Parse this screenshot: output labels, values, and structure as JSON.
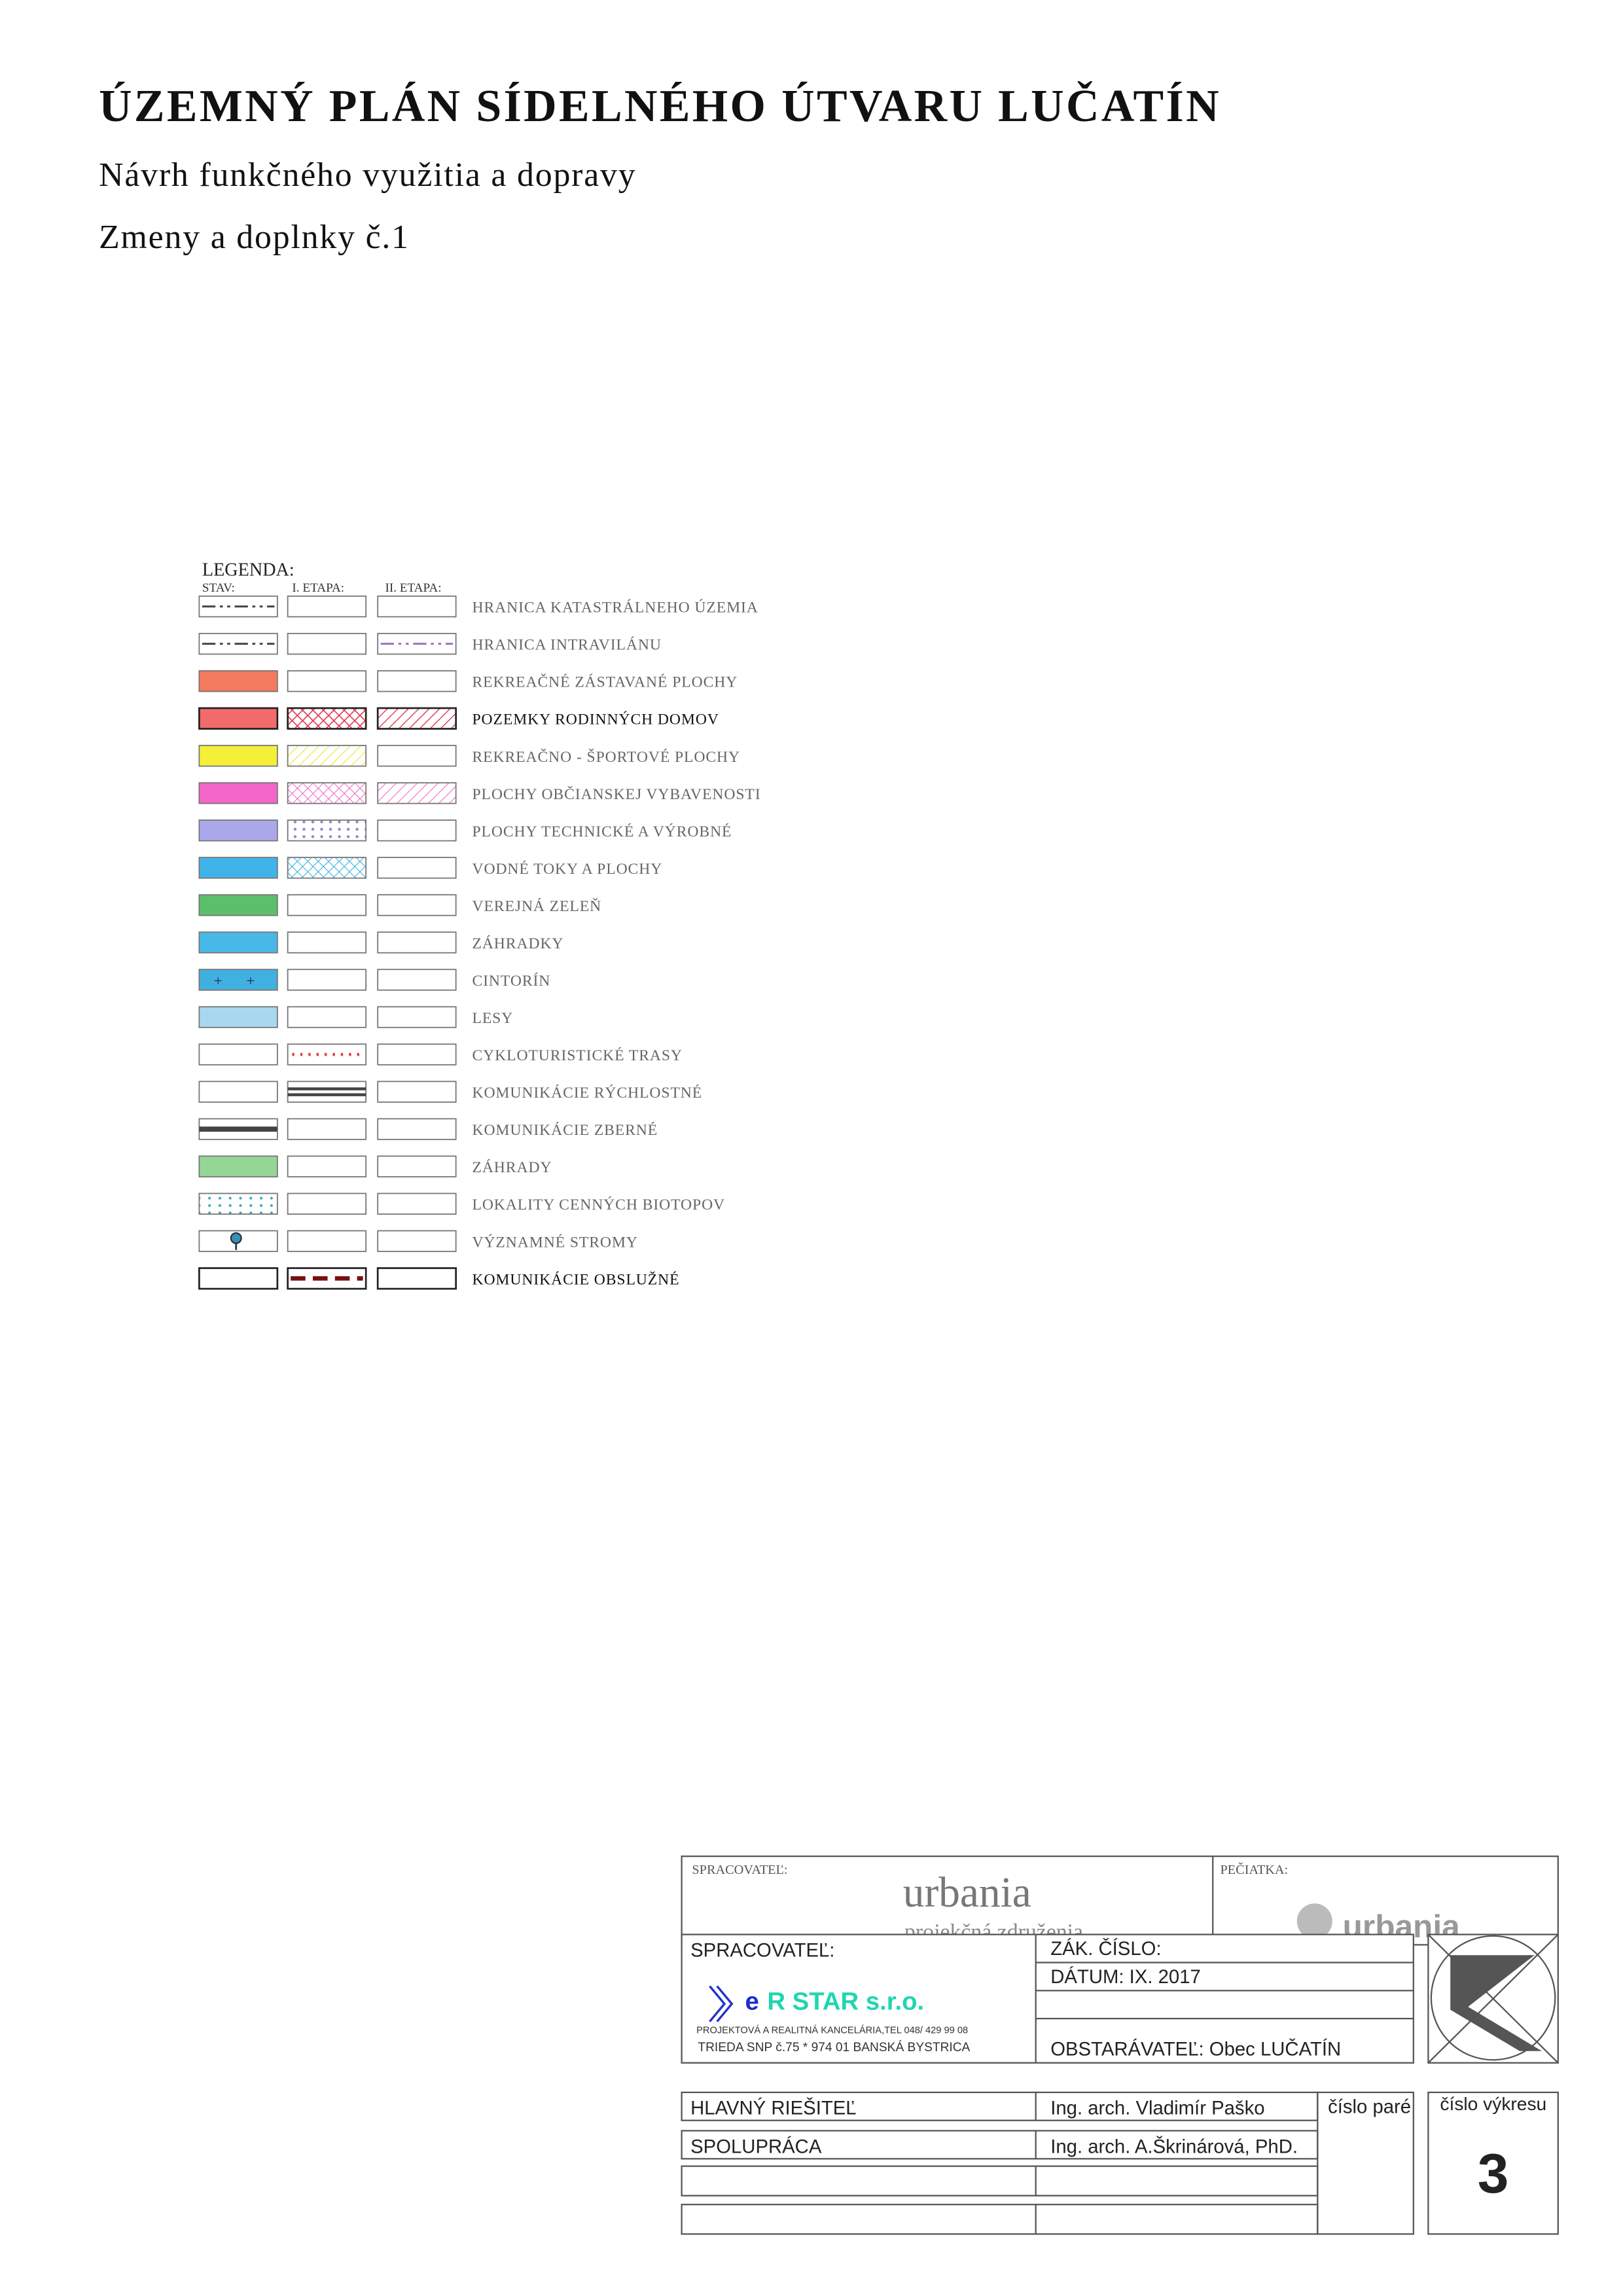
{
  "header": {
    "title": "ÚZEMNÝ PLÁN SÍDELNÉHO ÚTVARU LUČATÍN",
    "subtitle": "Návrh funkčného využitia a dopravy",
    "revision": "Zmeny a doplnky č.1"
  },
  "legend": {
    "title": "LEGENDA:",
    "columns": [
      "STAV:",
      "I. ETAPA:",
      "II. ETAPA:"
    ],
    "items": [
      "HRANICA  KATASTRÁLNEHO  ÚZEMIA",
      "HRANICA  INTRAVILÁNU",
      "REKREAČNÉ  ZÁSTAVANÉ  PLOCHY",
      "POZEMKY  RODINNÝCH  DOMOV",
      "REKREAČNO - ŠPORTOVÉ  PLOCHY",
      "PLOCHY  OBČIANSKEJ  VYBAVENOSTI",
      "PLOCHY  TECHNICKÉ  A  VÝROBNÉ",
      "VODNÉ  TOKY  A  PLOCHY",
      "VEREJNÁ  ZELEŇ",
      "ZÁHRADKY",
      "CINTORÍN",
      "LESY",
      "CYKLOTURISTICKÉ  TRASY",
      "KOMUNIKÁCIE  RÝCHLOSTNÉ",
      "KOMUNIKÁCIE  ZBERNÉ",
      "ZÁHRADY",
      "LOKALITY CENNÝCH BIOTOPOV",
      "VÝZNAMNÉ STROMY",
      "KOMUNIKÁCIE OBSLUŽNÉ"
    ]
  },
  "title_block": {
    "stamp_area": {
      "label": "SPRACOVATEĽ:",
      "name": "urbania",
      "name_sub": "projekčná združenia",
      "stamp_label": "PEČIATKA:",
      "stamp_logo": "urbania"
    },
    "processor_label": "SPRACOVATEĽ:",
    "company_prefix": "e",
    "company_name": "R STAR s.r.o.",
    "company_address_1": "PROJEKTOVÁ A REALITNÁ KANCELÁRIA,TEL 048/  429 99 08",
    "company_address_2": "TRIEDA SNP  č.75 * 974 01 BANSKÁ BYSTRICA",
    "order_number_label": "ZÁK. ČÍSLO:",
    "date": "DÁTUM: IX. 2017",
    "client": "OBSTARÁVATEĽ: Obec LUČATÍN",
    "rows": [
      [
        "HLAVNÝ RIEŠITEĽ",
        "Ing. arch. Vladimír Paško"
      ],
      [
        "SPOLUPRÁCA",
        "Ing. arch. A.Škrinárová, PhD."
      ]
    ],
    "copy_number_label": "číslo paré",
    "drawing_number_label": "číslo výkresu",
    "drawing_number": "3"
  }
}
